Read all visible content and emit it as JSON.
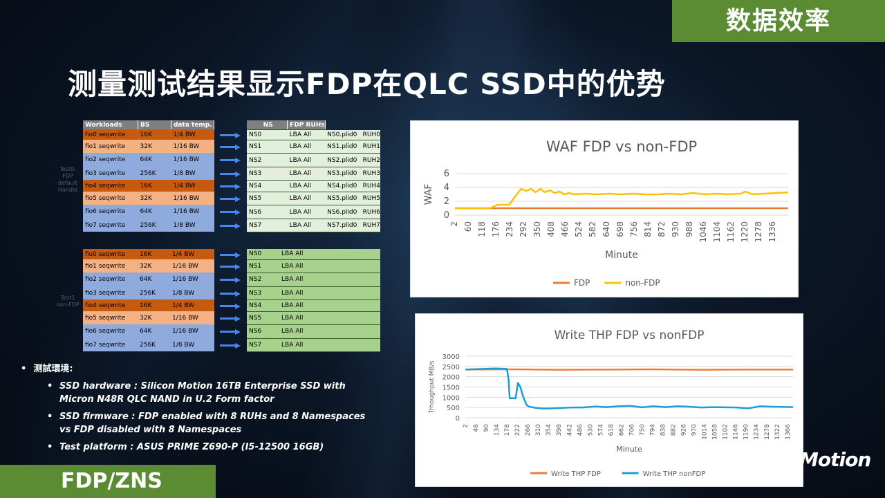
{
  "header": {
    "section_tag": "数据效率",
    "title": "测量测试结果显示FDP在QLC SSD中的优势",
    "footer_tag": "FDP/ZNS",
    "logo": "Motion"
  },
  "workloads_table": {
    "headers": [
      "Workloads",
      "BS",
      "data temp."
    ],
    "rows": [
      [
        "fio0 seqwrite",
        "16K",
        "1/4 BW"
      ],
      [
        "fio1 seqwrite",
        "32K",
        "1/16 BW"
      ],
      [
        "fio2 seqwrite",
        "64K",
        "1/16 BW"
      ],
      [
        "fio3 seqwrite",
        "256K",
        "1/8 BW"
      ],
      [
        "fio4 seqwrite",
        "16K",
        "1/4 BW"
      ],
      [
        "fio5 seqwrite",
        "32K",
        "1/16 BW"
      ],
      [
        "fio6 seqwrite",
        "64K",
        "1/16 BW"
      ],
      [
        "fio7 seqwrite",
        "256K",
        "1/8 BW"
      ]
    ]
  },
  "fdp_table": {
    "headers": [
      "NS",
      "FDP RUHs"
    ],
    "rows": [
      [
        "NS0",
        "LBA All",
        "NS0.plid0",
        "RUH0"
      ],
      [
        "NS1",
        "LBA All",
        "NS1.plid0",
        "RUH1"
      ],
      [
        "NS2",
        "LBA All",
        "NS2.plid0",
        "RUH2"
      ],
      [
        "NS3",
        "LBA All",
        "NS3.plid0",
        "RUH3"
      ],
      [
        "NS4",
        "LBA All",
        "NS4.plid0",
        "RUH4"
      ],
      [
        "NS5",
        "LBA All",
        "NS5.plid0",
        "RUH5"
      ],
      [
        "NS6",
        "LBA All",
        "NS6.plid0",
        "RUH6"
      ],
      [
        "NS7",
        "LBA All",
        "NS7.plid0",
        "RUH7"
      ]
    ]
  },
  "workloads_table2": {
    "rows": [
      [
        "fio0 seqwrite",
        "16K",
        "1/4 BW"
      ],
      [
        "fio1 seqwrite",
        "32K",
        "1/16 BW"
      ],
      [
        "fio2 seqwrite",
        "64K",
        "1/16 BW"
      ],
      [
        "fio3 seqwrite",
        "256K",
        "1/8 BW"
      ],
      [
        "fio4 seqwrite",
        "16K",
        "1/4 BW"
      ],
      [
        "fio5 seqwrite",
        "32K",
        "1/16 BW"
      ],
      [
        "fio6 seqwrite",
        "64K",
        "1/16 BW"
      ],
      [
        "fio7 seqwrite",
        "256K",
        "1/8 BW"
      ]
    ]
  },
  "nonfdp_table": {
    "rows": [
      [
        "NS0",
        "LBA All"
      ],
      [
        "NS1",
        "LBA All"
      ],
      [
        "NS2",
        "LBA All"
      ],
      [
        "NS3",
        "LBA All"
      ],
      [
        "NS4",
        "LBA All"
      ],
      [
        "NS5",
        "LBA All"
      ],
      [
        "NS6",
        "LBA All"
      ],
      [
        "NS7",
        "LBA All"
      ]
    ]
  },
  "side_labels": {
    "fdp": "Test0: FDP default Handle",
    "non": "Test1 non-FDP"
  },
  "environment": {
    "heading": "测試環境:",
    "items": [
      "SSD hardware : Silicon Motion 16TB Enterprise SSD with Micron N48R QLC NAND in U.2 Form factor",
      "SSD firmware : FDP enabled with 8 RUHs and 8 Namespaces vs FDP disabled with 8 Namespaces",
      "Test platform : ASUS PRIME Z690-P (I5-12500 16GB)"
    ]
  },
  "chart_data": [
    {
      "type": "line",
      "title": "WAF FDP vs non-FDP",
      "xlabel": "Minute",
      "ylabel": "WAF",
      "ylim": [
        0,
        6
      ],
      "yticks": [
        0,
        2,
        4,
        6
      ],
      "xticks": [
        2,
        60,
        118,
        176,
        234,
        292,
        350,
        408,
        466,
        524,
        582,
        640,
        698,
        756,
        814,
        872,
        930,
        988,
        1046,
        1104,
        1162,
        1220,
        1278,
        1336
      ],
      "xlim": [
        2,
        1400
      ],
      "legend_position": "bottom",
      "colors": {
        "FDP": "#ed7d31",
        "non-FDP": "#ffc000"
      },
      "series": [
        {
          "name": "FDP",
          "x": [
            2,
            1400
          ],
          "values": [
            1.0,
            1.0
          ]
        },
        {
          "name": "non-FDP",
          "x": [
            2,
            150,
            180,
            230,
            250,
            280,
            300,
            320,
            340,
            360,
            380,
            400,
            420,
            440,
            460,
            480,
            500,
            550,
            600,
            650,
            700,
            750,
            800,
            850,
            900,
            950,
            1000,
            1050,
            1100,
            1150,
            1200,
            1220,
            1250,
            1300,
            1350,
            1400
          ],
          "values": [
            1.0,
            1.0,
            1.5,
            1.5,
            2.5,
            3.8,
            3.5,
            3.8,
            3.3,
            3.8,
            3.3,
            3.6,
            3.2,
            3.4,
            3.0,
            3.2,
            3.0,
            3.1,
            3.0,
            3.1,
            3.0,
            3.1,
            3.0,
            3.0,
            3.1,
            3.0,
            3.2,
            3.0,
            3.1,
            3.0,
            3.1,
            3.4,
            3.0,
            3.1,
            3.2,
            3.3
          ]
        }
      ]
    },
    {
      "type": "line",
      "title": "Write THP FDP vs nonFDP",
      "xlabel": "Minute",
      "ylabel": "Trhoughput MB/s",
      "ylim": [
        0,
        3000
      ],
      "yticks": [
        0,
        500,
        1000,
        1500,
        2000,
        2500,
        3000
      ],
      "xticks": [
        2,
        46,
        90,
        134,
        178,
        222,
        266,
        310,
        354,
        398,
        442,
        486,
        530,
        574,
        618,
        662,
        706,
        750,
        794,
        838,
        882,
        926,
        970,
        1014,
        1058,
        1102,
        1146,
        1190,
        1234,
        1278,
        1322,
        1366
      ],
      "xlim": [
        2,
        1390
      ],
      "legend_position": "bottom",
      "colors": {
        "Write THP FDP": "#ed7d31",
        "Write THP nonFDP": "#1f9bd7"
      },
      "series": [
        {
          "name": "Write THP FDP",
          "x": [
            2,
            200,
            400,
            600,
            800,
            1000,
            1200,
            1390
          ],
          "values": [
            2350,
            2360,
            2340,
            2350,
            2360,
            2340,
            2350,
            2350
          ]
        },
        {
          "name": "Write THP nonFDP",
          "x": [
            2,
            130,
            178,
            185,
            190,
            215,
            225,
            235,
            245,
            255,
            262,
            270,
            300,
            330,
            350,
            400,
            450,
            500,
            550,
            600,
            650,
            700,
            750,
            800,
            850,
            900,
            950,
            1000,
            1050,
            1100,
            1150,
            1200,
            1250,
            1300,
            1390
          ],
          "values": [
            2350,
            2400,
            2380,
            1900,
            950,
            950,
            1700,
            1500,
            1100,
            800,
            620,
            550,
            480,
            450,
            450,
            470,
            500,
            500,
            550,
            520,
            560,
            580,
            510,
            560,
            520,
            560,
            540,
            500,
            520,
            510,
            500,
            460,
            560,
            540,
            520
          ]
        }
      ]
    }
  ]
}
